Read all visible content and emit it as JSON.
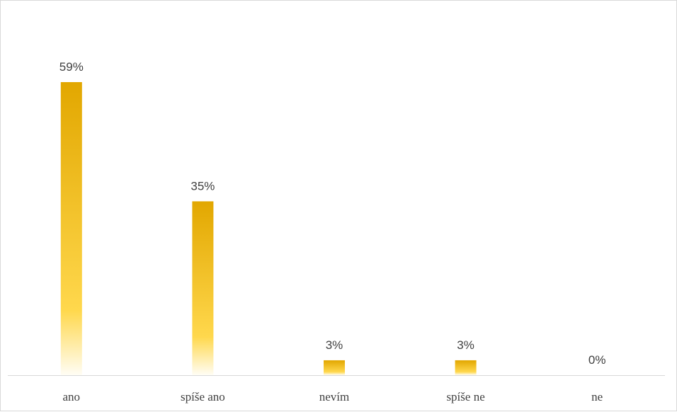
{
  "chart_data": {
    "type": "bar",
    "categories": [
      "ano",
      "spíše ano",
      "nevím",
      "spíše ne",
      "ne"
    ],
    "values": [
      59,
      35,
      3,
      3,
      0
    ],
    "data_labels": [
      "59%",
      "35%",
      "3%",
      "3%",
      "0%"
    ],
    "value_unit": "%",
    "ylim": [
      0,
      60
    ],
    "grid": false,
    "legend": false,
    "bar_color_top": "#e2a700",
    "bar_color_mid": "#ffd84d",
    "bar_color_bottom": "#fffdf5",
    "label_color": "#404040",
    "axis_color": "#d9d9d9"
  }
}
